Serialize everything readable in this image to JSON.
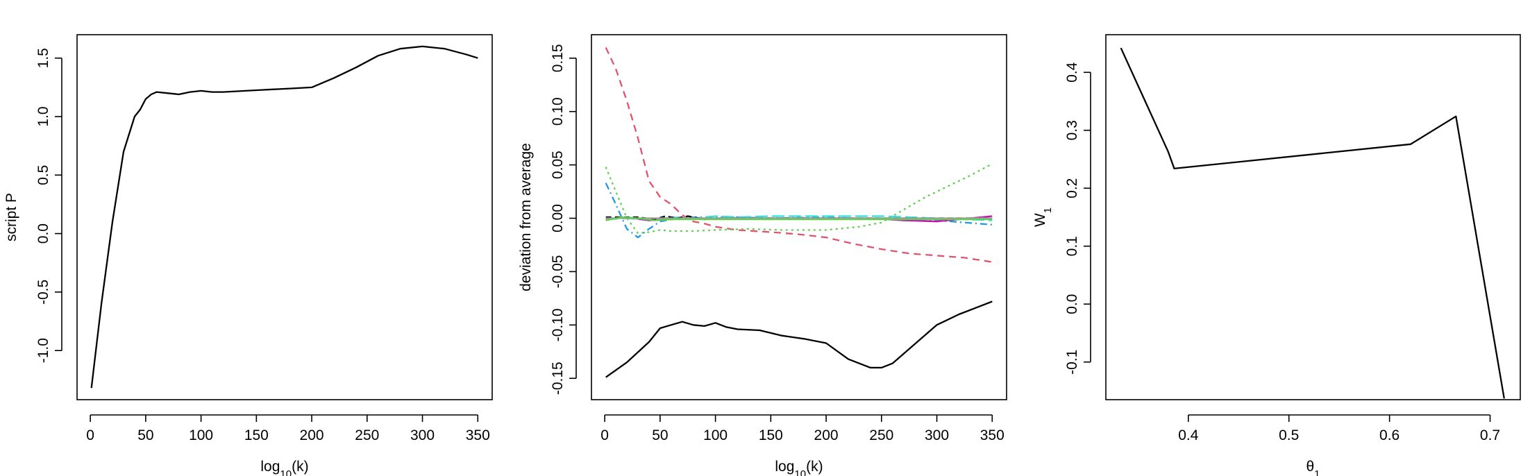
{
  "chart_data": [
    {
      "type": "line",
      "title": "",
      "xlabel": {
        "base": "log",
        "sub": "10",
        "rest": "(k)"
      },
      "ylabel": "script P",
      "xlim": [
        -12,
        363
      ],
      "ylim": [
        -1.42,
        1.7
      ],
      "x_ticks": [
        0,
        50,
        100,
        150,
        200,
        250,
        300,
        350
      ],
      "x_tick_labels": [
        "0",
        "50",
        "100",
        "150",
        "200",
        "250",
        "300",
        "350"
      ],
      "y_ticks": [
        -1.0,
        -0.5,
        0.0,
        0.5,
        1.0,
        1.5
      ],
      "y_tick_labels": [
        "-1.0",
        "-0.5",
        "0.0",
        "0.5",
        "1.0",
        "1.5"
      ],
      "grid": false,
      "series": [
        {
          "color": "#000000",
          "dash": "",
          "x": [
            1,
            10,
            20,
            30,
            40,
            45,
            50,
            55,
            60,
            70,
            80,
            90,
            100,
            110,
            120,
            140,
            160,
            180,
            200,
            220,
            240,
            260,
            280,
            300,
            320,
            340,
            350
          ],
          "y": [
            -1.32,
            -0.6,
            0.1,
            0.7,
            1.0,
            1.06,
            1.15,
            1.19,
            1.21,
            1.2,
            1.19,
            1.21,
            1.22,
            1.21,
            1.21,
            1.22,
            1.23,
            1.24,
            1.25,
            1.33,
            1.42,
            1.52,
            1.58,
            1.6,
            1.58,
            1.53,
            1.5
          ]
        }
      ]
    },
    {
      "type": "line",
      "title": "",
      "xlabel": {
        "base": "log",
        "sub": "10",
        "rest": "(k)"
      },
      "ylabel": "deviation from average",
      "xlim": [
        -12,
        363
      ],
      "ylim": [
        -0.17,
        0.172
      ],
      "x_ticks": [
        0,
        50,
        100,
        150,
        200,
        250,
        300,
        350
      ],
      "x_tick_labels": [
        "0",
        "50",
        "100",
        "150",
        "200",
        "250",
        "300",
        "350"
      ],
      "y_ticks": [
        -0.15,
        -0.1,
        -0.05,
        0.0,
        0.05,
        0.1,
        0.15
      ],
      "y_tick_labels": [
        "-0.15",
        "-0.10",
        "-0.05",
        "0.00",
        "0.05",
        "0.10",
        "0.15"
      ],
      "grid": false,
      "series": [
        {
          "color": "#000000",
          "dash": "",
          "x": [
            1,
            20,
            40,
            50,
            60,
            70,
            80,
            90,
            100,
            110,
            120,
            140,
            160,
            180,
            200,
            220,
            240,
            250,
            260,
            280,
            300,
            320,
            340,
            350
          ],
          "y": [
            -0.149,
            -0.135,
            -0.116,
            -0.103,
            -0.1,
            -0.097,
            -0.1,
            -0.101,
            -0.098,
            -0.102,
            -0.104,
            -0.105,
            -0.11,
            -0.113,
            -0.117,
            -0.132,
            -0.14,
            -0.14,
            -0.136,
            -0.118,
            -0.1,
            -0.09,
            -0.082,
            -0.078
          ]
        },
        {
          "color": "#DF536B",
          "dash": "10,7",
          "x": [
            1,
            10,
            20,
            30,
            40,
            50,
            60,
            70,
            80,
            90,
            100,
            120,
            150,
            175,
            200,
            225,
            250,
            275,
            300,
            325,
            350
          ],
          "y": [
            0.16,
            0.14,
            0.11,
            0.075,
            0.035,
            0.02,
            0.013,
            0.003,
            -0.003,
            -0.005,
            -0.008,
            -0.011,
            -0.013,
            -0.015,
            -0.018,
            -0.024,
            -0.029,
            -0.033,
            -0.035,
            -0.037,
            -0.041
          ]
        },
        {
          "color": "#61D04F",
          "dash": "3,5",
          "x": [
            1,
            10,
            20,
            30,
            40,
            50,
            60,
            80,
            100,
            130,
            160,
            200,
            230,
            250,
            270,
            290,
            310,
            330,
            350
          ],
          "y": [
            0.048,
            0.025,
            0.0,
            -0.014,
            -0.013,
            -0.011,
            -0.012,
            -0.012,
            -0.011,
            -0.01,
            -0.011,
            -0.011,
            -0.008,
            -0.004,
            0.008,
            0.02,
            0.03,
            0.04,
            0.051
          ]
        },
        {
          "color": "#2297E6",
          "dash": "10,5,2,5",
          "x": [
            1,
            10,
            20,
            30,
            40,
            50,
            60,
            80,
            100,
            120,
            150,
            200,
            250,
            300,
            350
          ],
          "y": [
            0.033,
            0.013,
            -0.01,
            -0.018,
            -0.01,
            -0.003,
            -0.001,
            0.001,
            0.001,
            0.001,
            0.0,
            0.001,
            -0.001,
            -0.002,
            -0.006
          ]
        },
        {
          "color": "#28E2E5",
          "dash": "18,6",
          "x": [
            1,
            20,
            40,
            60,
            80,
            100,
            120,
            150,
            200,
            250,
            300,
            350
          ],
          "y": [
            -0.001,
            0.0,
            -0.002,
            0.001,
            0.0,
            0.002,
            0.001,
            0.002,
            0.002,
            0.002,
            0.0,
            -0.002
          ]
        },
        {
          "color": "#CD0BBC",
          "dash": "",
          "x": [
            1,
            20,
            40,
            60,
            80,
            100,
            130,
            160,
            200,
            240,
            270,
            300,
            330,
            350
          ],
          "y": [
            -0.001,
            0.001,
            -0.002,
            -0.001,
            0.0,
            0.0,
            0.0,
            0.0,
            0.0,
            0.0,
            -0.002,
            -0.003,
            0.0,
            0.002
          ]
        },
        {
          "color": "#F5C710",
          "dash": "6,6",
          "x": [
            1,
            50,
            100,
            150,
            200,
            250,
            300,
            350
          ],
          "y": [
            0.0,
            0.0,
            0.0,
            0.0,
            0.0,
            0.0,
            0.0,
            0.0
          ]
        },
        {
          "color": "#000000",
          "dash": "8,5",
          "x": [
            1,
            30,
            45,
            55,
            65,
            75,
            90,
            110,
            140,
            180,
            220,
            260,
            300,
            350
          ],
          "y": [
            0.001,
            0.001,
            -0.001,
            0.002,
            0.0,
            0.002,
            -0.001,
            0.0,
            0.0,
            0.0,
            0.0,
            0.0,
            0.0,
            0.0
          ]
        },
        {
          "color": "#9E9E9E",
          "dash": "",
          "x": [
            1,
            100,
            200,
            300,
            350
          ],
          "y": [
            0.0,
            0.0,
            0.0,
            0.0,
            0.0
          ]
        },
        {
          "color": "#61D04F",
          "dash": "",
          "x": [
            1,
            15,
            30,
            45,
            60,
            80,
            100,
            150,
            200,
            250,
            300,
            350
          ],
          "y": [
            -0.002,
            0.001,
            0.0,
            -0.002,
            -0.001,
            -0.001,
            -0.001,
            -0.001,
            -0.001,
            -0.001,
            -0.001,
            -0.001
          ]
        }
      ]
    },
    {
      "type": "line",
      "title": "",
      "xlabel": {
        "base": "θ",
        "sub": "1",
        "rest": ""
      },
      "ylabel": {
        "base": "W",
        "sub": "1"
      },
      "xlim": [
        0.318,
        0.73
      ],
      "ylim": [
        -0.165,
        0.465
      ],
      "x_ticks": [
        0.4,
        0.5,
        0.6,
        0.7
      ],
      "x_tick_labels": [
        "0.4",
        "0.5",
        "0.6",
        "0.7"
      ],
      "y_ticks": [
        -0.1,
        0.0,
        0.1,
        0.2,
        0.3,
        0.4
      ],
      "y_tick_labels": [
        "-0.1",
        "0.0",
        "0.1",
        "0.2",
        "0.3",
        "0.4"
      ],
      "grid": false,
      "series": [
        {
          "color": "#000000",
          "dash": "",
          "x": [
            0.333,
            0.38,
            0.386,
            0.621,
            0.666,
            0.714
          ],
          "y": [
            0.442,
            0.263,
            0.234,
            0.276,
            0.324,
            -0.163
          ]
        }
      ]
    }
  ]
}
